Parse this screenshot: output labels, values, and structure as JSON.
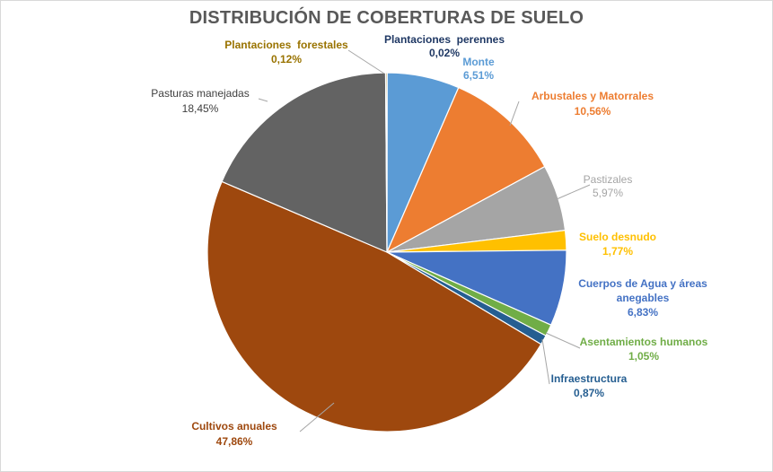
{
  "chart_data": {
    "type": "pie",
    "title": "DISTRIBUCIÓN DE COBERTURAS DE SUELO",
    "slices": [
      {
        "name": "Plantaciones  perennes",
        "value": 0.02,
        "label": "0,02%",
        "color": "#1f3864"
      },
      {
        "name": "Monte",
        "value": 6.51,
        "label": "6,51%",
        "color": "#5b9bd5"
      },
      {
        "name": "Arbustales y Matorrales",
        "value": 10.56,
        "label": "10,56%",
        "color": "#ed7d31"
      },
      {
        "name": "Pastizales",
        "value": 5.97,
        "label": "5,97%",
        "color": "#a5a5a5"
      },
      {
        "name": "Suelo desnudo",
        "value": 1.77,
        "label": "1,77%",
        "color": "#ffc000"
      },
      {
        "name": "Cuerpos de Agua y áreas anegables",
        "value": 6.83,
        "label": "6,83%",
        "color": "#4472c4"
      },
      {
        "name": "Asentamientos humanos",
        "value": 1.05,
        "label": "1,05%",
        "color": "#70ad47"
      },
      {
        "name": "Infraestructura",
        "value": 0.87,
        "label": "0,87%",
        "color": "#255e91"
      },
      {
        "name": "Cultivos anuales",
        "value": 47.86,
        "label": "47,86%",
        "color": "#9e480e"
      },
      {
        "name": "Pasturas manejadas",
        "value": 18.45,
        "label": "18,45%",
        "color": "#636363"
      },
      {
        "name": "Plantaciones  forestales",
        "value": 0.12,
        "label": "0,12%",
        "color": "#997300"
      }
    ]
  }
}
